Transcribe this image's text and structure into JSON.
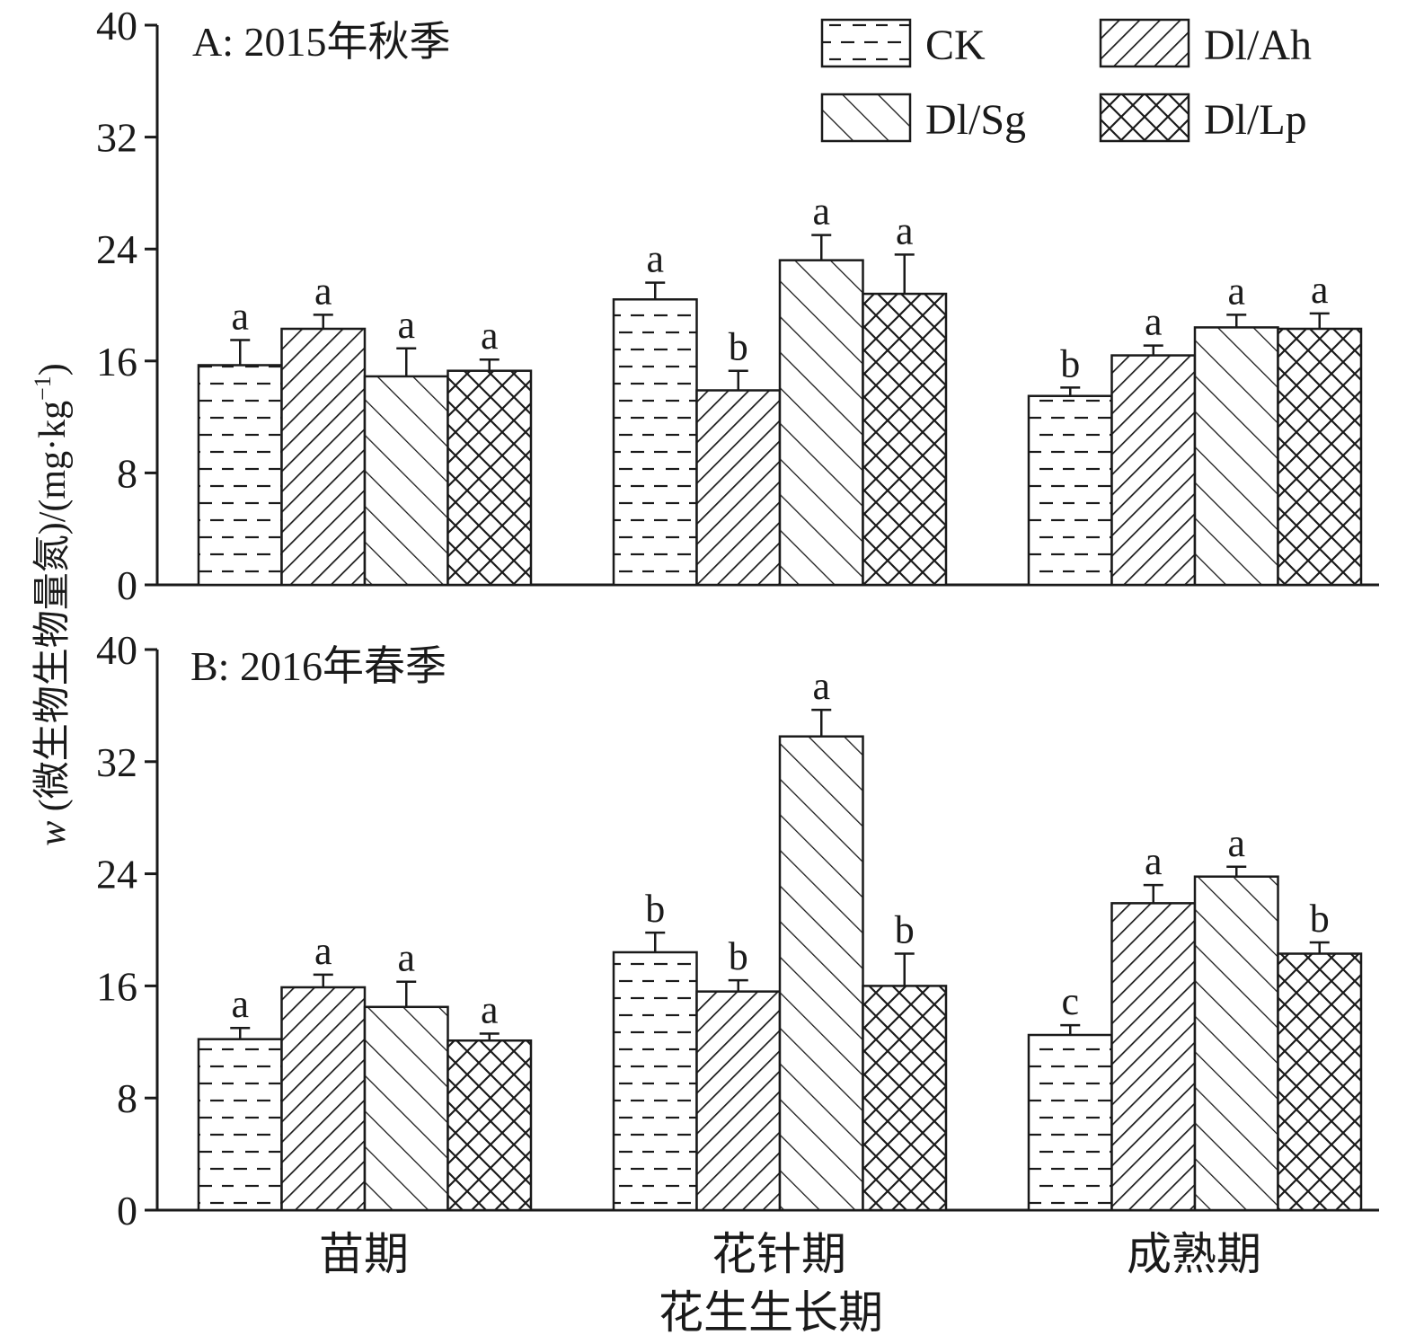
{
  "ylabel_prefix": "w",
  "ylabel_rest": " (微生物生物量氮)/(mg·kg",
  "ylabel_sup": "−1",
  "ylabel_close": ")",
  "xlabel": "花生生长期",
  "legend": {
    "items": [
      {
        "label": "CK",
        "pattern": "dash"
      },
      {
        "label": "Dl/Ah",
        "pattern": "diag-right"
      },
      {
        "label": "Dl/Sg",
        "pattern": "diag-left"
      },
      {
        "label": "Dl/Lp",
        "pattern": "cross"
      }
    ]
  },
  "colors": {
    "stroke": "#1a1a1a",
    "fill": "#ffffff"
  },
  "chart_data": [
    {
      "type": "bar",
      "panel_label": "A:  2015年秋季",
      "categories": [
        "苗期",
        "花针期",
        "成熟期"
      ],
      "ylim": [
        0,
        40
      ],
      "yticks": [
        0,
        8,
        16,
        24,
        32,
        40
      ],
      "series": [
        {
          "name": "CK",
          "values": [
            15.7,
            20.4,
            13.5
          ],
          "errors": [
            1.8,
            1.2,
            0.6
          ],
          "letters": [
            "a",
            "a",
            "b"
          ]
        },
        {
          "name": "Dl/Ah",
          "values": [
            18.3,
            13.9,
            16.4
          ],
          "errors": [
            1.0,
            1.4,
            0.7
          ],
          "letters": [
            "a",
            "b",
            "a"
          ]
        },
        {
          "name": "Dl/Sg",
          "values": [
            14.9,
            23.2,
            18.4
          ],
          "errors": [
            2.0,
            1.8,
            0.9
          ],
          "letters": [
            "a",
            "a",
            "a"
          ]
        },
        {
          "name": "Dl/Lp",
          "values": [
            15.3,
            20.8,
            18.3
          ],
          "errors": [
            0.8,
            2.8,
            1.1
          ],
          "letters": [
            "a",
            "a",
            "a"
          ]
        }
      ]
    },
    {
      "type": "bar",
      "panel_label": "B: 2016年春季",
      "categories": [
        "苗期",
        "花针期",
        "成熟期"
      ],
      "ylim": [
        0,
        40
      ],
      "yticks": [
        0,
        8,
        16,
        24,
        32,
        40
      ],
      "series": [
        {
          "name": "CK",
          "values": [
            12.2,
            18.4,
            12.5
          ],
          "errors": [
            0.8,
            1.4,
            0.7
          ],
          "letters": [
            "a",
            "b",
            "c"
          ]
        },
        {
          "name": "Dl/Ah",
          "values": [
            15.9,
            15.6,
            21.9
          ],
          "errors": [
            0.9,
            0.8,
            1.3
          ],
          "letters": [
            "a",
            "b",
            "a"
          ]
        },
        {
          "name": "Dl/Sg",
          "values": [
            14.5,
            33.8,
            23.8
          ],
          "errors": [
            1.8,
            1.9,
            0.7
          ],
          "letters": [
            "a",
            "a",
            "a"
          ]
        },
        {
          "name": "Dl/Lp",
          "values": [
            12.1,
            16.0,
            18.3
          ],
          "errors": [
            0.5,
            2.3,
            0.8
          ],
          "letters": [
            "a",
            "b",
            "b"
          ]
        }
      ]
    }
  ]
}
